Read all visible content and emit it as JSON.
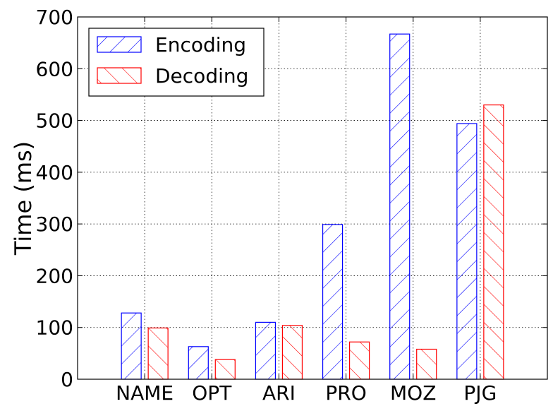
{
  "chart_data": {
    "type": "bar",
    "categories": [
      "NAME",
      "OPT",
      "ARI",
      "PRO",
      "MOZ",
      "PJG"
    ],
    "series": [
      {
        "name": "Encoding",
        "values": [
          128,
          63,
          110,
          299,
          667,
          494
        ],
        "color": "#0000ff",
        "hatch": "forward-diagonal"
      },
      {
        "name": "Decoding",
        "values": [
          99,
          38,
          104,
          72,
          58,
          530
        ],
        "color": "#ff0000",
        "hatch": "back-diagonal"
      }
    ],
    "title": "",
    "xlabel": "",
    "ylabel": "Time (ms)",
    "ylim": [
      0,
      700
    ],
    "yticks": [
      0,
      100,
      200,
      300,
      400,
      500,
      600,
      700
    ],
    "grid": true,
    "legend_position": "top-left"
  }
}
